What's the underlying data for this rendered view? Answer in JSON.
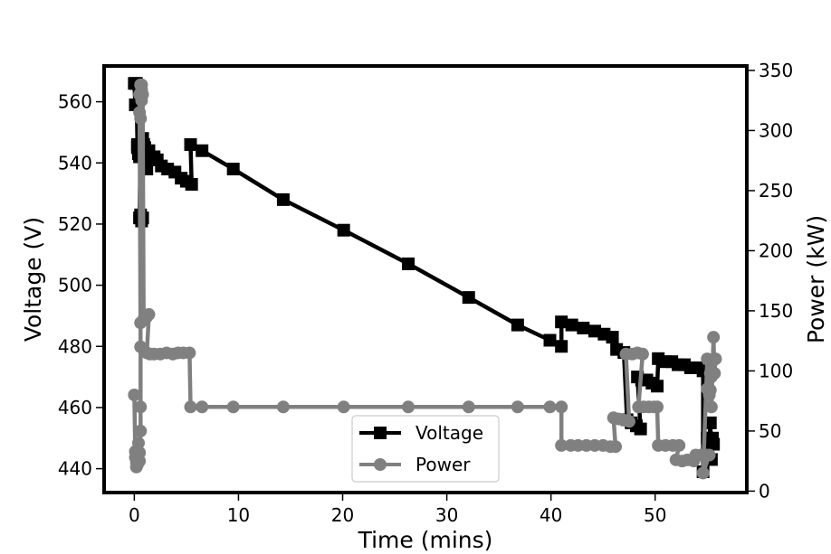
{
  "chart_data": {
    "type": "line",
    "title": "",
    "xlabel": "Time (mins)",
    "ylabel_left": "Voltage (V)",
    "ylabel_right": "Power (kW)",
    "xlim": [
      -2.9,
      58.8
    ],
    "ylim_left": [
      432.2,
      571.7
    ],
    "ylim_right": [
      -1.2,
      353.7
    ],
    "x_ticks": [
      0,
      10,
      20,
      30,
      40,
      50
    ],
    "y_left_ticks": [
      440,
      460,
      480,
      500,
      520,
      540,
      560
    ],
    "y_right_ticks": [
      0,
      50,
      100,
      150,
      200,
      250,
      300,
      350
    ],
    "grid": false,
    "legend_position": "lower-center",
    "colors": {
      "voltage": "#000000",
      "power": "#808080"
    },
    "series": [
      {
        "name": "Voltage",
        "axis": "left",
        "marker": "square",
        "points": [
          [
            0.0,
            566
          ],
          [
            0.1,
            559
          ],
          [
            0.2,
            566
          ],
          [
            0.3,
            546
          ],
          [
            0.3,
            545
          ],
          [
            0.4,
            544
          ],
          [
            0.4,
            543
          ],
          [
            0.5,
            544
          ],
          [
            0.5,
            542
          ],
          [
            0.6,
            545
          ],
          [
            0.6,
            546
          ],
          [
            0.6,
            523
          ],
          [
            0.5,
            522
          ],
          [
            0.6,
            545
          ],
          [
            0.7,
            522
          ],
          [
            0.7,
            521
          ],
          [
            0.8,
            522
          ],
          [
            0.7,
            544
          ],
          [
            0.8,
            548
          ],
          [
            0.9,
            546
          ],
          [
            0.9,
            543
          ],
          [
            1.0,
            545
          ],
          [
            1.0,
            541
          ],
          [
            1.1,
            540
          ],
          [
            1.2,
            538
          ],
          [
            1.4,
            544
          ],
          [
            1.6,
            542
          ],
          [
            1.9,
            542
          ],
          [
            2.2,
            541
          ],
          [
            2.6,
            539
          ],
          [
            3.2,
            538
          ],
          [
            3.9,
            537
          ],
          [
            4.5,
            535
          ],
          [
            5.0,
            534
          ],
          [
            5.5,
            533
          ],
          [
            5.4,
            546
          ],
          [
            6.5,
            544
          ],
          [
            9.5,
            538
          ],
          [
            14.3,
            528
          ],
          [
            20.1,
            518
          ],
          [
            26.3,
            507
          ],
          [
            32.1,
            496
          ],
          [
            36.8,
            487
          ],
          [
            39.9,
            482
          ],
          [
            41.0,
            480
          ],
          [
            41.0,
            488
          ],
          [
            42.0,
            487
          ],
          [
            43.1,
            486
          ],
          [
            44.2,
            485
          ],
          [
            45.1,
            484
          ],
          [
            45.9,
            483
          ],
          [
            46.3,
            479
          ],
          [
            47.0,
            478
          ],
          [
            47.3,
            456
          ],
          [
            47.7,
            455
          ],
          [
            48.2,
            454
          ],
          [
            48.6,
            453
          ],
          [
            48.3,
            470
          ],
          [
            48.7,
            469
          ],
          [
            49.2,
            469
          ],
          [
            49.7,
            468
          ],
          [
            50.2,
            467
          ],
          [
            50.3,
            476
          ],
          [
            51.0,
            475
          ],
          [
            51.6,
            475
          ],
          [
            52.2,
            474
          ],
          [
            52.8,
            474
          ],
          [
            53.4,
            473
          ],
          [
            54.0,
            473
          ],
          [
            54.6,
            472
          ],
          [
            54.6,
            439
          ],
          [
            55.0,
            450
          ],
          [
            55.2,
            448
          ],
          [
            55.3,
            455
          ],
          [
            55.4,
            443
          ],
          [
            55.5,
            450
          ],
          [
            55.6,
            448
          ]
        ]
      },
      {
        "name": "Power",
        "axis": "right",
        "marker": "circle",
        "points": [
          [
            0.0,
            80
          ],
          [
            0.1,
            28
          ],
          [
            0.1,
            33
          ],
          [
            0.2,
            20
          ],
          [
            0.2,
            24
          ],
          [
            0.3,
            22
          ],
          [
            0.3,
            27
          ],
          [
            0.4,
            30
          ],
          [
            0.4,
            40
          ],
          [
            0.5,
            25
          ],
          [
            0.5,
            32
          ],
          [
            0.6,
            50
          ],
          [
            0.6,
            70
          ],
          [
            0.6,
            120
          ],
          [
            0.5,
            330
          ],
          [
            0.6,
            338
          ],
          [
            0.5,
            315
          ],
          [
            0.6,
            310
          ],
          [
            0.7,
            325
          ],
          [
            0.7,
            338
          ],
          [
            0.7,
            334
          ],
          [
            0.6,
            140
          ],
          [
            0.8,
            330
          ],
          [
            0.9,
            143
          ],
          [
            1.2,
            145
          ],
          [
            1.4,
            147
          ],
          [
            1.2,
            115
          ],
          [
            1.5,
            114
          ],
          [
            1.9,
            114
          ],
          [
            2.5,
            114
          ],
          [
            3.1,
            115
          ],
          [
            3.7,
            114
          ],
          [
            4.2,
            115
          ],
          [
            4.7,
            115
          ],
          [
            5.3,
            115
          ],
          [
            5.4,
            70
          ],
          [
            6.5,
            70
          ],
          [
            9.5,
            70
          ],
          [
            14.3,
            70
          ],
          [
            20.1,
            70
          ],
          [
            26.3,
            70
          ],
          [
            32.1,
            70
          ],
          [
            36.8,
            70
          ],
          [
            39.9,
            70
          ],
          [
            41.0,
            70
          ],
          [
            41.0,
            38
          ],
          [
            41.9,
            38
          ],
          [
            42.6,
            38
          ],
          [
            43.4,
            38
          ],
          [
            44.2,
            38
          ],
          [
            45.0,
            38
          ],
          [
            45.7,
            37
          ],
          [
            46.2,
            37
          ],
          [
            46.0,
            61
          ],
          [
            46.5,
            60
          ],
          [
            47.0,
            59
          ],
          [
            47.5,
            58
          ],
          [
            47.2,
            114
          ],
          [
            47.8,
            114
          ],
          [
            48.3,
            115
          ],
          [
            48.8,
            114
          ],
          [
            48.4,
            70
          ],
          [
            48.9,
            70
          ],
          [
            49.4,
            70
          ],
          [
            49.9,
            70
          ],
          [
            50.2,
            70
          ],
          [
            50.3,
            38
          ],
          [
            51.0,
            38
          ],
          [
            51.7,
            38
          ],
          [
            52.3,
            38
          ],
          [
            52.0,
            26
          ],
          [
            52.6,
            25
          ],
          [
            53.1,
            26
          ],
          [
            53.7,
            25
          ],
          [
            53.9,
            30
          ],
          [
            54.4,
            30
          ],
          [
            54.9,
            30
          ],
          [
            55.2,
            30
          ],
          [
            54.6,
            15
          ],
          [
            55.0,
            110
          ],
          [
            55.2,
            82
          ],
          [
            55.3,
            98
          ],
          [
            55.0,
            85
          ],
          [
            55.2,
            80
          ],
          [
            55.3,
            84
          ],
          [
            55.4,
            95
          ],
          [
            55.5,
            108
          ],
          [
            55.4,
            70
          ],
          [
            55.6,
            128
          ],
          [
            55.7,
            98
          ],
          [
            55.8,
            110
          ]
        ]
      }
    ]
  }
}
